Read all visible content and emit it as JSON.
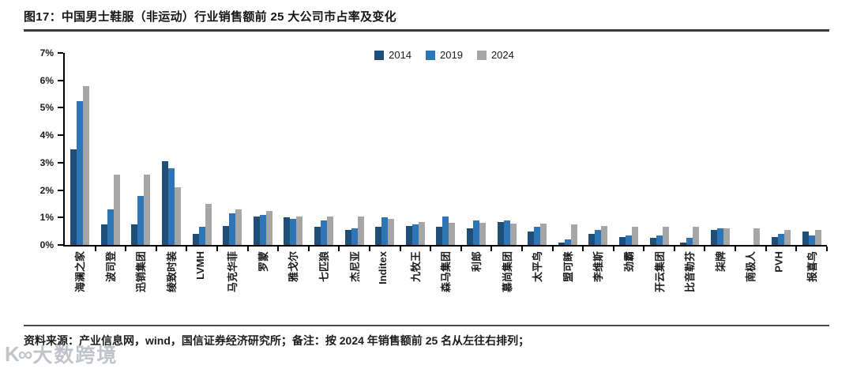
{
  "figure": {
    "title": "图17：中国男士鞋服（非运动）行业销售额前 25 大公司市占率及变化",
    "source_note": "资料来源：产业信息网，wind，国信证券经济研究所；备注：按 2024 年销售额前 25 名从左往右排列；",
    "watermark_logo": "K∞",
    "watermark_text": "大数跨境"
  },
  "colors": {
    "series_2014": "#1F4E79",
    "series_2019": "#2E75B6",
    "series_2024": "#A6A6A6",
    "axis": "#000000"
  },
  "chart_data": {
    "type": "bar",
    "title": "中国男士鞋服（非运动）行业销售额前 25 大公司市占率及变化",
    "categories": [
      "海澜之家",
      "波司登",
      "迅销集团",
      "绫致时装",
      "LVMH",
      "马克华菲",
      "罗蒙",
      "雅戈尔",
      "七匹狼",
      "杰尼亚",
      "Inditex",
      "九牧王",
      "森马集团",
      "利郎",
      "慕尚集团",
      "太平鸟",
      "盟可睐",
      "李维斯",
      "劲霸",
      "开云集团",
      "比音勒芬",
      "柒牌",
      "南极人",
      "PVH",
      "报喜鸟"
    ],
    "series": [
      {
        "name": "2014",
        "color": "#1F4E79",
        "values": [
          3.5,
          0.75,
          0.75,
          3.05,
          0.4,
          0.7,
          1.05,
          1.0,
          0.65,
          0.55,
          0.65,
          0.7,
          0.65,
          0.6,
          0.85,
          0.5,
          0.1,
          0.4,
          0.3,
          0.25,
          0.1,
          0.55,
          0,
          0.3,
          0.5
        ]
      },
      {
        "name": "2019",
        "color": "#2E75B6",
        "values": [
          5.25,
          1.3,
          1.8,
          2.8,
          0.65,
          1.15,
          1.1,
          0.95,
          0.9,
          0.6,
          1.0,
          0.75,
          1.05,
          0.9,
          0.9,
          0.65,
          0.2,
          0.55,
          0.35,
          0.35,
          0.25,
          0.6,
          0,
          0.4,
          0.35
        ]
      },
      {
        "name": "2024",
        "color": "#A6A6A6",
        "values": [
          5.8,
          2.55,
          2.55,
          2.1,
          1.5,
          1.3,
          1.25,
          1.05,
          1.05,
          1.05,
          0.95,
          0.85,
          0.8,
          0.8,
          0.78,
          0.78,
          0.75,
          0.7,
          0.65,
          0.65,
          0.65,
          0.6,
          0.6,
          0.55,
          0.55
        ]
      }
    ],
    "ylabel": "",
    "xlabel": "",
    "ylim": [
      0,
      7
    ],
    "yticks": [
      "0%",
      "1%",
      "2%",
      "3%",
      "4%",
      "5%",
      "6%",
      "7%"
    ],
    "ytick_unit": "percent",
    "grid": false,
    "legend_position": "top-center"
  }
}
